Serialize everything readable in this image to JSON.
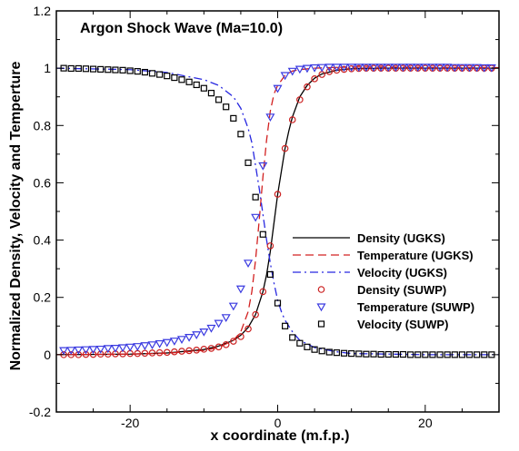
{
  "chart_data": {
    "type": "line",
    "title": "Argon Shock Wave (Ma=10.0)",
    "xlabel": "x coordinate (m.f.p.)",
    "ylabel": "Normalized Density, Velocity and Temperture",
    "xlim": [
      -30,
      30
    ],
    "ylim": [
      -0.2,
      1.2
    ],
    "x_ticks": [
      -20,
      0,
      20
    ],
    "x_tick_labels": [
      "-20",
      "0",
      "20"
    ],
    "y_ticks": [
      -0.2,
      0,
      0.2,
      0.4,
      0.6,
      0.8,
      1,
      1.2
    ],
    "y_tick_labels": [
      "-0.2",
      "0",
      "0.2",
      "0.4",
      "0.6",
      "0.8",
      "1",
      "1.2"
    ],
    "grid": false,
    "legend_position": "center-right",
    "series": [
      {
        "name": "Density (UGKS)",
        "style": "solid",
        "color": "#000000",
        "x": [
          -30,
          -20,
          -15,
          -10,
          -8,
          -6,
          -5,
          -4,
          -3,
          -2,
          -1.5,
          -1,
          -0.5,
          0,
          0.5,
          1,
          1.5,
          2,
          3,
          4,
          5,
          6,
          8,
          10,
          15,
          20,
          30
        ],
        "y": [
          0.0,
          0.002,
          0.006,
          0.018,
          0.03,
          0.05,
          0.068,
          0.095,
          0.14,
          0.22,
          0.28,
          0.36,
          0.46,
          0.56,
          0.64,
          0.72,
          0.78,
          0.83,
          0.9,
          0.94,
          0.965,
          0.98,
          0.993,
          0.998,
          1.0,
          1.0,
          1.0
        ]
      },
      {
        "name": "Temperature (UGKS)",
        "style": "dashed",
        "color": "#d22020",
        "x": [
          -30,
          -20,
          -15,
          -10,
          -8,
          -6,
          -5,
          -4,
          -3.5,
          -3,
          -2.5,
          -2,
          -1.5,
          -1,
          -0.5,
          0,
          1,
          2,
          3,
          5,
          8,
          10,
          15,
          20,
          30
        ],
        "y": [
          0.0,
          0.002,
          0.005,
          0.015,
          0.025,
          0.05,
          0.08,
          0.15,
          0.22,
          0.33,
          0.47,
          0.62,
          0.75,
          0.85,
          0.91,
          0.94,
          0.975,
          0.99,
          0.995,
          1.0,
          1.003,
          1.004,
          1.004,
          1.003,
          1.002
        ]
      },
      {
        "name": "Velocity (UGKS)",
        "style": "dashdot",
        "color": "#2828e0",
        "x": [
          -30,
          -20,
          -15,
          -10,
          -8,
          -6,
          -5,
          -4,
          -3.5,
          -3,
          -2.5,
          -2,
          -1.5,
          -1,
          -0.5,
          0,
          0.5,
          1,
          2,
          3,
          5,
          8,
          10,
          20,
          30
        ],
        "y": [
          1.0,
          0.995,
          0.985,
          0.96,
          0.94,
          0.9,
          0.86,
          0.79,
          0.74,
          0.66,
          0.58,
          0.49,
          0.4,
          0.32,
          0.25,
          0.19,
          0.15,
          0.12,
          0.08,
          0.05,
          0.025,
          0.01,
          0.004,
          0.0,
          0.0
        ]
      },
      {
        "name": "Density (SUWP)",
        "marker": "circle",
        "color": "#cc2222",
        "x": [
          -29,
          -28,
          -27,
          -26,
          -25,
          -24,
          -23,
          -22,
          -21,
          -20,
          -19,
          -18,
          -17,
          -16,
          -15,
          -14,
          -13,
          -12,
          -11,
          -10,
          -9,
          -8,
          -7,
          -6,
          -5,
          -4,
          -3,
          -2,
          -1,
          0,
          1,
          2,
          3,
          4,
          5,
          6,
          7,
          8,
          9,
          10,
          11,
          12,
          13,
          14,
          15,
          16,
          17,
          18,
          19,
          20,
          21,
          22,
          23,
          24,
          25,
          26,
          27,
          28,
          29
        ],
        "y": [
          0.0,
          0.0,
          0.0,
          0.001,
          0.001,
          0.002,
          0.002,
          0.003,
          0.003,
          0.004,
          0.004,
          0.005,
          0.006,
          0.007,
          0.008,
          0.01,
          0.012,
          0.014,
          0.016,
          0.019,
          0.022,
          0.027,
          0.035,
          0.047,
          0.063,
          0.09,
          0.14,
          0.22,
          0.38,
          0.56,
          0.72,
          0.82,
          0.89,
          0.935,
          0.963,
          0.978,
          0.988,
          0.993,
          0.996,
          0.998,
          0.999,
          1.0,
          1.0,
          1.0,
          1.0,
          1.0,
          1.0,
          1.0,
          1.0,
          1.0,
          1.0,
          1.0,
          1.0,
          1.0,
          1.0,
          1.0,
          1.0,
          1.0,
          1.0
        ]
      },
      {
        "name": "Temperature (SUWP)",
        "marker": "triangle-down",
        "color": "#3a3ae0",
        "x": [
          -29,
          -28,
          -27,
          -26,
          -25,
          -24,
          -23,
          -22,
          -21,
          -20,
          -19,
          -18,
          -17,
          -16,
          -15,
          -14,
          -13,
          -12,
          -11,
          -10,
          -9,
          -8,
          -7,
          -6,
          -5,
          -4,
          -3,
          -2,
          -1,
          0,
          1,
          2,
          3,
          4,
          5,
          6,
          7,
          8,
          9,
          10,
          11,
          12,
          13,
          14,
          15,
          16,
          17,
          18,
          19,
          20,
          21,
          22,
          23,
          24,
          25,
          26,
          27,
          28,
          29
        ],
        "y": [
          0.015,
          0.016,
          0.017,
          0.018,
          0.019,
          0.02,
          0.022,
          0.023,
          0.025,
          0.027,
          0.029,
          0.032,
          0.035,
          0.039,
          0.043,
          0.048,
          0.054,
          0.061,
          0.07,
          0.08,
          0.093,
          0.11,
          0.13,
          0.17,
          0.23,
          0.32,
          0.48,
          0.66,
          0.83,
          0.93,
          0.975,
          0.99,
          0.997,
          1.0,
          1.002,
          1.003,
          1.004,
          1.004,
          1.004,
          1.004,
          1.004,
          1.004,
          1.004,
          1.004,
          1.004,
          1.004,
          1.004,
          1.004,
          1.004,
          1.004,
          1.004,
          1.004,
          1.004,
          1.003,
          1.003,
          1.003,
          1.003,
          1.002,
          1.002
        ]
      },
      {
        "name": "Velocity (SUWP)",
        "marker": "square",
        "color": "#000000",
        "x": [
          -29,
          -28,
          -27,
          -26,
          -25,
          -24,
          -23,
          -22,
          -21,
          -20,
          -19,
          -18,
          -17,
          -16,
          -15,
          -14,
          -13,
          -12,
          -11,
          -10,
          -9,
          -8,
          -7,
          -6,
          -5,
          -4,
          -3,
          -2,
          -1,
          0,
          1,
          2,
          3,
          4,
          5,
          6,
          7,
          8,
          9,
          10,
          11,
          12,
          13,
          14,
          15,
          16,
          17,
          18,
          19,
          20,
          21,
          22,
          23,
          24,
          25,
          26,
          27,
          28,
          29
        ],
        "y": [
          1.0,
          0.999,
          0.999,
          0.998,
          0.997,
          0.996,
          0.995,
          0.994,
          0.993,
          0.991,
          0.989,
          0.986,
          0.982,
          0.978,
          0.973,
          0.967,
          0.96,
          0.952,
          0.942,
          0.93,
          0.913,
          0.89,
          0.865,
          0.825,
          0.77,
          0.67,
          0.55,
          0.42,
          0.28,
          0.18,
          0.1,
          0.06,
          0.04,
          0.027,
          0.018,
          0.013,
          0.009,
          0.007,
          0.005,
          0.004,
          0.003,
          0.002,
          0.002,
          0.001,
          0.001,
          0.001,
          0.001,
          0.0,
          0.0,
          0.0,
          0.0,
          0.0,
          0.0,
          0.0,
          0.0,
          0.0,
          0.0,
          0.0,
          0.0
        ]
      }
    ]
  }
}
